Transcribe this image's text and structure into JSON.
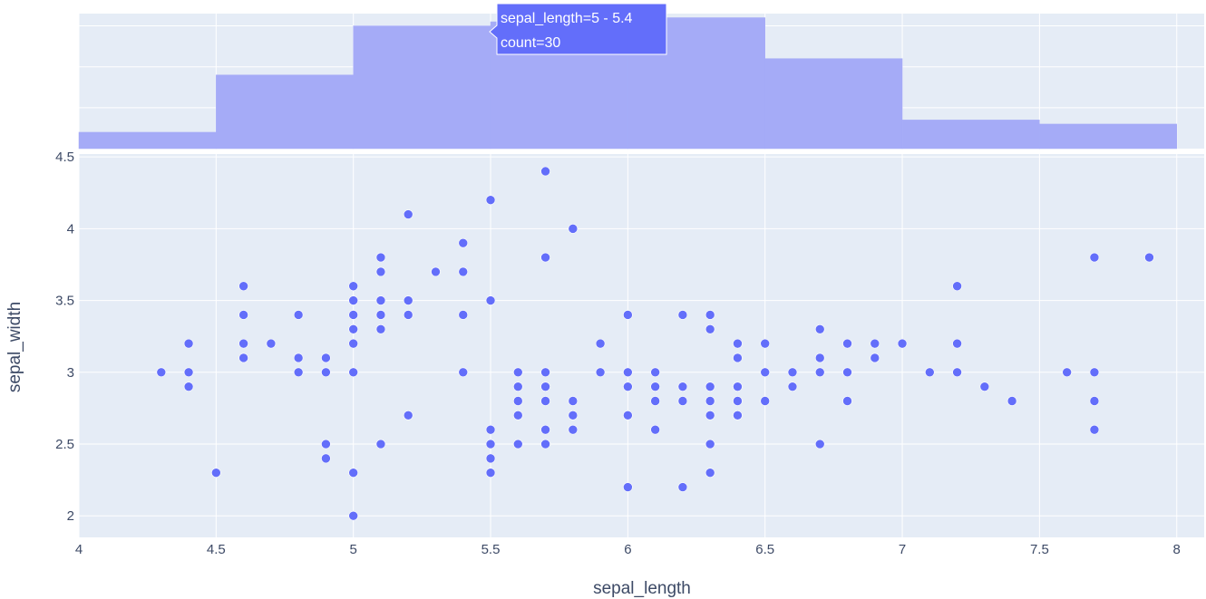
{
  "chart_data": {
    "type": "scatter",
    "xlabel": "sepal_length",
    "ylabel": "sepal_width",
    "xlim": [
      4,
      8.1
    ],
    "ylim": [
      1.85,
      4.52
    ],
    "x_ticks": [
      4,
      4.5,
      5,
      5.5,
      6,
      6.5,
      7,
      7.5,
      8
    ],
    "y_ticks": [
      2,
      2.5,
      3,
      3.5,
      4,
      4.5
    ],
    "grid": true,
    "colors": {
      "marker": "#636efa",
      "hist_fill": "#a5abf7",
      "plot_bg": "#e5ecf6",
      "grid": "#ffffff",
      "text": "#3d4a66"
    },
    "points": [
      [
        4.3,
        3.0
      ],
      [
        4.4,
        3.2
      ],
      [
        4.4,
        3.0
      ],
      [
        4.4,
        2.9
      ],
      [
        4.5,
        2.3
      ],
      [
        4.6,
        3.6
      ],
      [
        4.6,
        3.4
      ],
      [
        4.6,
        3.2
      ],
      [
        4.6,
        3.1
      ],
      [
        4.7,
        3.2
      ],
      [
        4.8,
        3.4
      ],
      [
        4.8,
        3.1
      ],
      [
        4.8,
        3.0
      ],
      [
        4.9,
        3.1
      ],
      [
        4.9,
        3.0
      ],
      [
        4.9,
        2.5
      ],
      [
        4.9,
        2.4
      ],
      [
        5.0,
        3.6
      ],
      [
        5.0,
        3.5
      ],
      [
        5.0,
        3.4
      ],
      [
        5.0,
        3.3
      ],
      [
        5.0,
        3.2
      ],
      [
        5.0,
        3.0
      ],
      [
        5.0,
        2.3
      ],
      [
        5.0,
        2.0
      ],
      [
        5.1,
        3.8
      ],
      [
        5.1,
        3.7
      ],
      [
        5.1,
        3.5
      ],
      [
        5.1,
        3.4
      ],
      [
        5.1,
        3.3
      ],
      [
        5.1,
        2.5
      ],
      [
        5.2,
        4.1
      ],
      [
        5.2,
        3.5
      ],
      [
        5.2,
        3.4
      ],
      [
        5.2,
        2.7
      ],
      [
        5.3,
        3.7
      ],
      [
        5.4,
        3.9
      ],
      [
        5.4,
        3.7
      ],
      [
        5.4,
        3.4
      ],
      [
        5.4,
        3.0
      ],
      [
        5.5,
        4.2
      ],
      [
        5.5,
        3.5
      ],
      [
        5.5,
        2.6
      ],
      [
        5.5,
        2.5
      ],
      [
        5.5,
        2.4
      ],
      [
        5.5,
        2.3
      ],
      [
        5.6,
        3.0
      ],
      [
        5.6,
        2.9
      ],
      [
        5.6,
        2.8
      ],
      [
        5.6,
        2.7
      ],
      [
        5.6,
        2.5
      ],
      [
        5.7,
        4.4
      ],
      [
        5.7,
        3.8
      ],
      [
        5.7,
        3.0
      ],
      [
        5.7,
        2.9
      ],
      [
        5.7,
        2.8
      ],
      [
        5.7,
        2.6
      ],
      [
        5.7,
        2.5
      ],
      [
        5.8,
        4.0
      ],
      [
        5.8,
        2.8
      ],
      [
        5.8,
        2.7
      ],
      [
        5.8,
        2.6
      ],
      [
        5.9,
        3.2
      ],
      [
        5.9,
        3.0
      ],
      [
        6.0,
        3.4
      ],
      [
        6.0,
        3.0
      ],
      [
        6.0,
        2.9
      ],
      [
        6.0,
        2.7
      ],
      [
        6.0,
        2.2
      ],
      [
        6.1,
        3.0
      ],
      [
        6.1,
        2.9
      ],
      [
        6.1,
        2.8
      ],
      [
        6.1,
        2.6
      ],
      [
        6.2,
        3.4
      ],
      [
        6.2,
        2.9
      ],
      [
        6.2,
        2.8
      ],
      [
        6.2,
        2.2
      ],
      [
        6.3,
        3.4
      ],
      [
        6.3,
        3.3
      ],
      [
        6.3,
        2.9
      ],
      [
        6.3,
        2.8
      ],
      [
        6.3,
        2.7
      ],
      [
        6.3,
        2.5
      ],
      [
        6.3,
        2.3
      ],
      [
        6.4,
        3.2
      ],
      [
        6.4,
        3.1
      ],
      [
        6.4,
        2.9
      ],
      [
        6.4,
        2.8
      ],
      [
        6.4,
        2.7
      ],
      [
        6.5,
        3.2
      ],
      [
        6.5,
        3.0
      ],
      [
        6.5,
        2.8
      ],
      [
        6.6,
        3.0
      ],
      [
        6.6,
        2.9
      ],
      [
        6.7,
        3.3
      ],
      [
        6.7,
        3.1
      ],
      [
        6.7,
        3.0
      ],
      [
        6.7,
        2.5
      ],
      [
        6.8,
        3.2
      ],
      [
        6.8,
        3.0
      ],
      [
        6.8,
        2.8
      ],
      [
        6.9,
        3.2
      ],
      [
        6.9,
        3.1
      ],
      [
        7.0,
        3.2
      ],
      [
        7.1,
        3.0
      ],
      [
        7.2,
        3.6
      ],
      [
        7.2,
        3.2
      ],
      [
        7.2,
        3.0
      ],
      [
        7.3,
        2.9
      ],
      [
        7.4,
        2.8
      ],
      [
        7.6,
        3.0
      ],
      [
        7.7,
        3.8
      ],
      [
        7.7,
        3.0
      ],
      [
        7.7,
        2.8
      ],
      [
        7.7,
        2.6
      ],
      [
        7.9,
        3.8
      ]
    ],
    "histogram": {
      "bins": [
        {
          "range": "4 - 4.4",
          "start": 4.0,
          "end": 4.5,
          "count": 4
        },
        {
          "range": "4.5 - 4.9",
          "start": 4.5,
          "end": 5.0,
          "count": 18
        },
        {
          "range": "5 - 5.4",
          "start": 5.0,
          "end": 5.5,
          "count": 30
        },
        {
          "range": "5.5 - 5.9",
          "start": 5.5,
          "end": 6.0,
          "count": 31
        },
        {
          "range": "6 - 6.4",
          "start": 6.0,
          "end": 6.5,
          "count": 32
        },
        {
          "range": "6.5 - 6.9",
          "start": 6.5,
          "end": 7.0,
          "count": 22
        },
        {
          "range": "7 - 7.4",
          "start": 7.0,
          "end": 7.5,
          "count": 7
        },
        {
          "range": "7.5 - 7.9",
          "start": 7.5,
          "end": 8.0,
          "count": 6
        }
      ],
      "grid_counts": [
        10,
        20,
        30
      ]
    },
    "tooltip": {
      "line1": "sepal_length=5 - 5.4",
      "line2": "count=30",
      "bin_index": 2
    }
  }
}
